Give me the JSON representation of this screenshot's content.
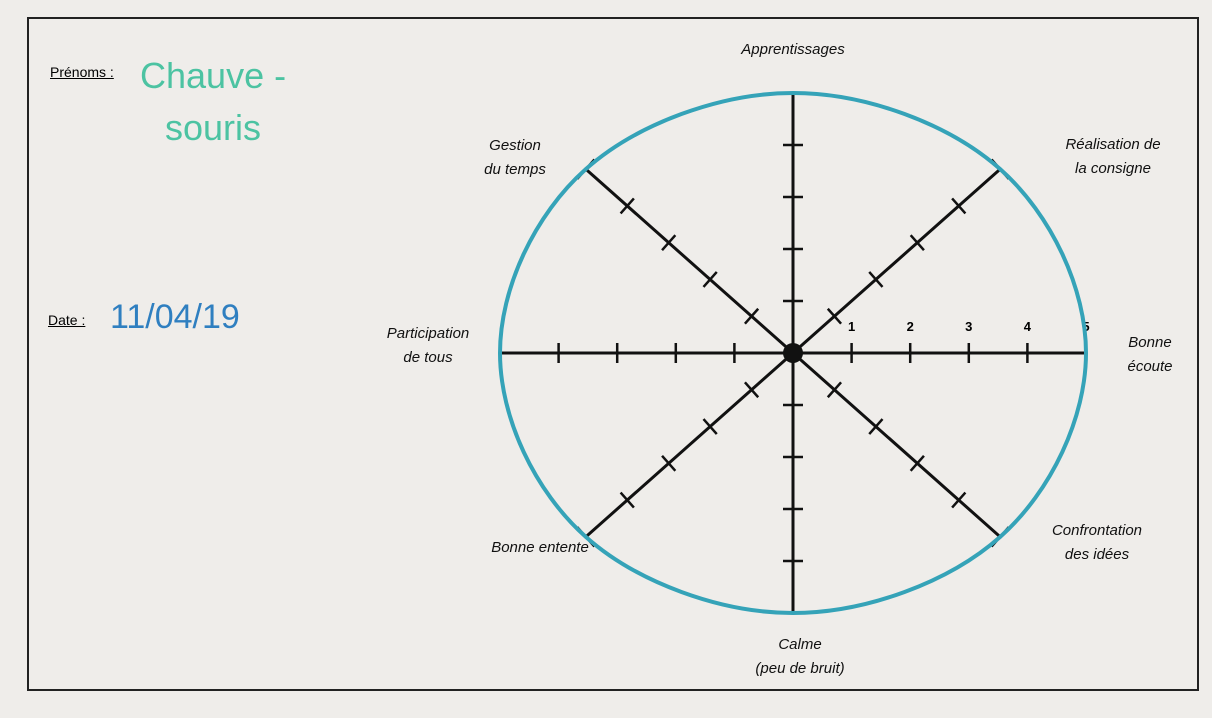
{
  "form": {
    "name_label": "Prénoms :",
    "name": "Chauve -\nsouris",
    "date_label": "Date :",
    "date": "11/04/19"
  },
  "chart_data": {
    "type": "radar",
    "categories": [
      "Apprentissages",
      "Réalisation de\nla consigne",
      "Bonne\nécoute",
      "Confrontation\ndes idées",
      "Calme\n(peu de bruit)",
      "Bonne entente",
      "Participation\nde tous",
      "Gestion\ndu temps"
    ],
    "values": [
      5,
      5,
      5,
      5,
      5,
      5,
      5,
      5
    ],
    "color": "#35a3b8",
    "rlim": [
      0,
      5
    ],
    "rticks": [
      1,
      2,
      3,
      4,
      5
    ]
  }
}
